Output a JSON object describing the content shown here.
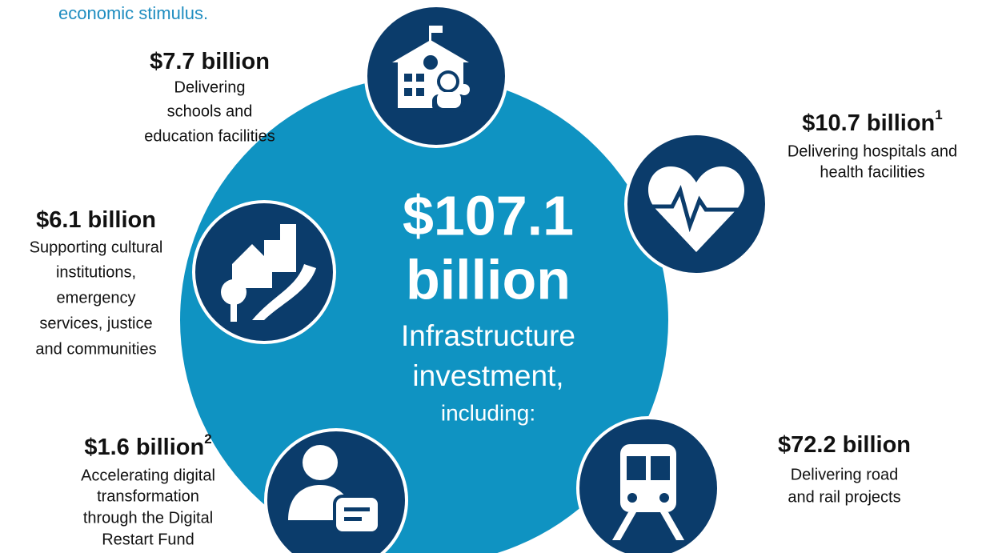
{
  "header": {
    "text": "economic stimulus."
  },
  "center": {
    "amount": [
      "$107.1",
      "billion"
    ],
    "description": [
      "Infrastructure",
      "investment,"
    ],
    "note": "including:"
  },
  "items": [
    {
      "amount": "$7.7 billion",
      "description": [
        "Delivering",
        "schools and",
        "education facilities"
      ]
    },
    {
      "amount": "$10.7 billion",
      "footnote": "1",
      "description": [
        "Delivering hospitals and",
        "health facilities"
      ]
    },
    {
      "amount": "$6.1 billion",
      "description": [
        "Supporting cultural",
        "institutions,",
        "emergency",
        "services, justice",
        "and communities"
      ]
    },
    {
      "amount": "$1.6 billion",
      "footnote": "2",
      "description": [
        "Accelerating digital",
        "transformation",
        "through the Digital",
        "Restart Fund"
      ]
    },
    {
      "amount": "$72.2 billion",
      "description": [
        "Delivering road",
        "and rail projects"
      ]
    }
  ]
}
